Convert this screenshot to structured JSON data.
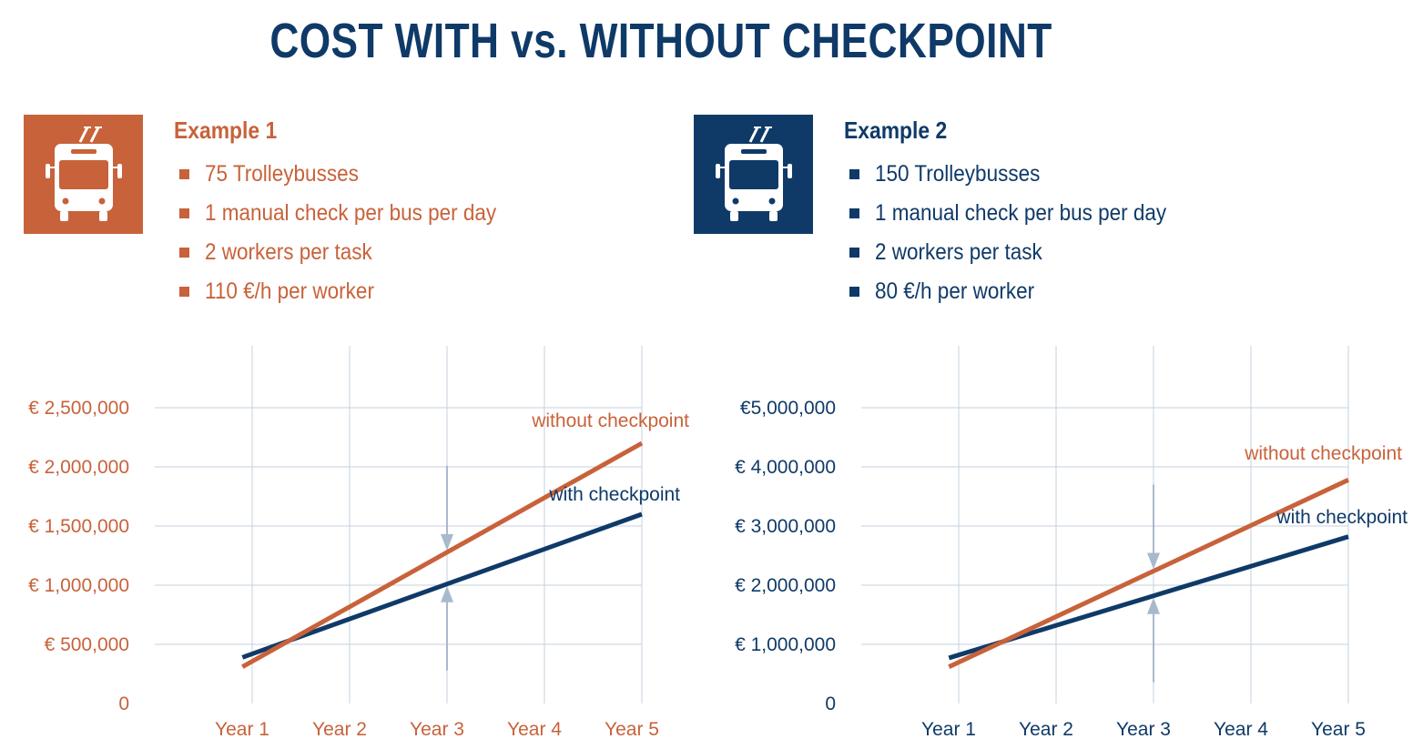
{
  "title": "COST WITH vs. WITHOUT CHECKPOINT",
  "colors": {
    "orange": "#c8623a",
    "navy": "#0f3a68",
    "grid": "#c5d0dc",
    "arrow": "#a9b9cc"
  },
  "examples": [
    {
      "heading": "Example 1",
      "icon": "trolleybus-icon",
      "color": "#c8623a",
      "bullets": [
        "75 Trolleybusses",
        "1 manual check per bus per day",
        "2 workers per task",
        "110 €/h per worker"
      ]
    },
    {
      "heading": "Example 2",
      "icon": "trolleybus-icon",
      "color": "#0f3a68",
      "bullets": [
        "150 Trolleybusses",
        "1 manual check per bus per day",
        "2 workers per task",
        "80 €/h per worker"
      ]
    }
  ],
  "chart_data": [
    {
      "type": "line",
      "categories": [
        "Year 1",
        "Year 2",
        "Year 3",
        "Year 4",
        "Year 5"
      ],
      "ylim": [
        0,
        2500000
      ],
      "yticks": [
        0,
        500000,
        1000000,
        1500000,
        2000000,
        2500000
      ],
      "ytick_labels": [
        "0",
        "€ 500,000",
        "€ 1,000,000",
        "€ 1,500,000",
        "€ 2,000,000",
        "€ 2,500,000"
      ],
      "tick_color": "#c8623a",
      "grid": true,
      "series": [
        {
          "name": "without checkpoint",
          "color": "#c8623a",
          "x": [
            0.9,
            5.0
          ],
          "y": [
            310000,
            2200000
          ]
        },
        {
          "name": "with checkpoint",
          "color": "#0f3a68",
          "x": [
            0.9,
            5.0
          ],
          "y": [
            390000,
            1600000
          ]
        }
      ],
      "annotation": {
        "x": 3,
        "label": "gap marked by arrows at Year 3"
      }
    },
    {
      "type": "line",
      "categories": [
        "Year 1",
        "Year 2",
        "Year 3",
        "Year 4",
        "Year 5"
      ],
      "ylim": [
        0,
        5000000
      ],
      "yticks": [
        0,
        1000000,
        2000000,
        3000000,
        4000000,
        5000000
      ],
      "ytick_labels": [
        "0",
        "€ 1,000,000",
        "€ 2,000,000",
        "€ 3,000,000",
        "€ 4,000,000",
        "€5,000,000"
      ],
      "tick_color": "#0f3a68",
      "grid": true,
      "series": [
        {
          "name": "without checkpoint",
          "color": "#c8623a",
          "x": [
            0.9,
            5.0
          ],
          "y": [
            620000,
            3780000
          ]
        },
        {
          "name": "with checkpoint",
          "color": "#0f3a68",
          "x": [
            0.9,
            5.0
          ],
          "y": [
            770000,
            2820000
          ]
        }
      ],
      "annotation": {
        "x": 3,
        "label": "gap marked by arrows at Year 3"
      }
    }
  ]
}
